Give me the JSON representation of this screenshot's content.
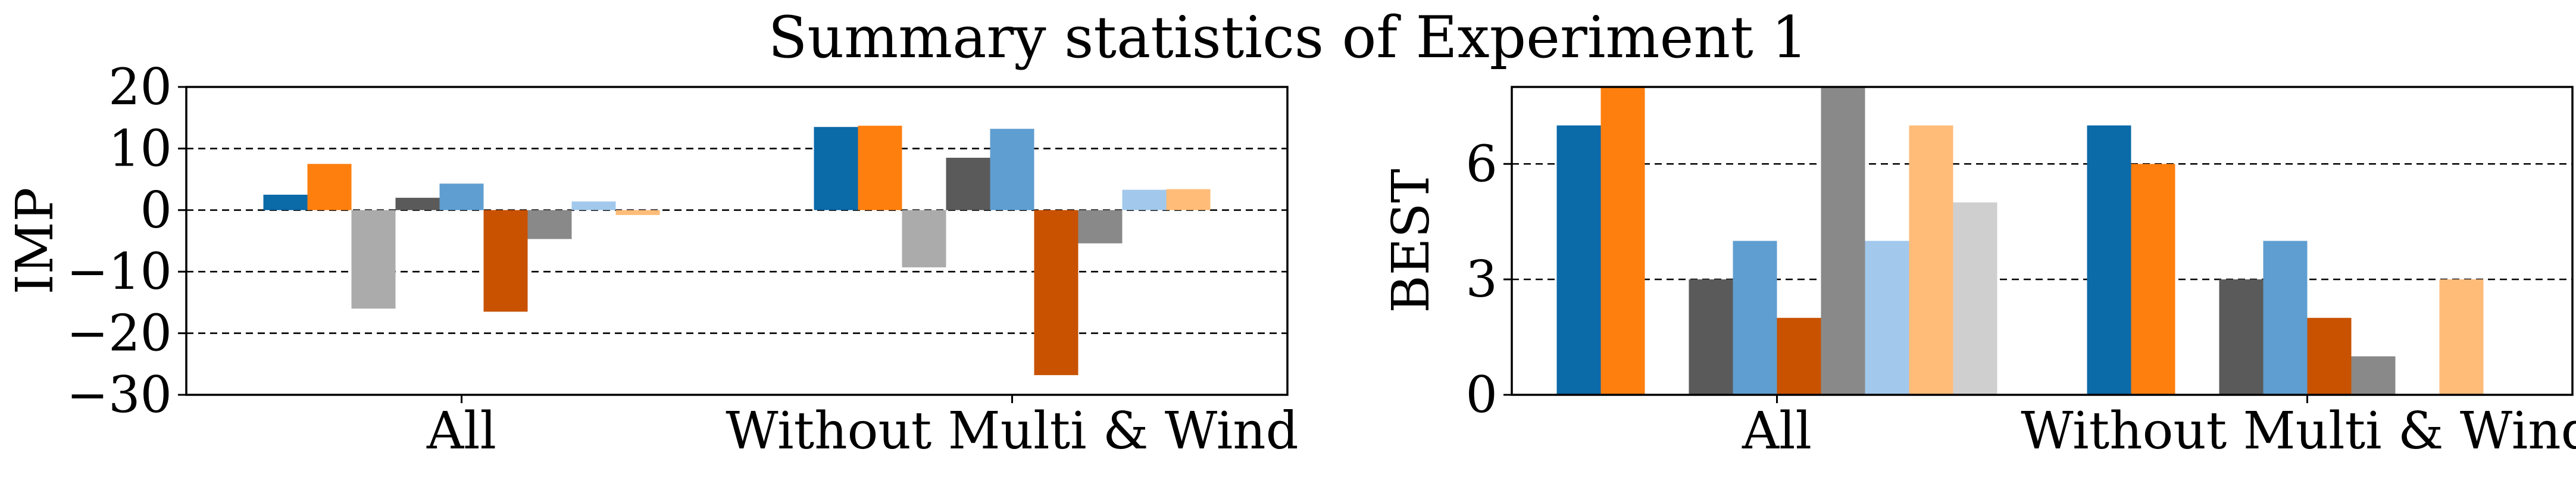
{
  "title": "Summary statistics of Experiment 1",
  "chart_data": [
    {
      "type": "bar",
      "ylabel": "IMP",
      "xlabel": "",
      "ylim": [
        -30,
        20
      ],
      "yticks": [
        -30,
        -20,
        -10,
        0,
        10,
        20
      ],
      "ytick_labels": [
        "−30",
        "−20",
        "−10",
        "0",
        "10",
        "20"
      ],
      "grid_y": [
        -20,
        -10,
        0,
        10
      ],
      "grid_style": "dashed horizontal",
      "categories": [
        "All",
        "Without Multi & Wind"
      ],
      "series": [
        {
          "color": "#0b6aa8",
          "values": [
            2.5,
            13.5
          ]
        },
        {
          "color": "#ff7f0e",
          "values": [
            7.5,
            13.7
          ]
        },
        {
          "color": "#ababab",
          "values": [
            -16.0,
            -9.3
          ]
        },
        {
          "color": "#5a5a5a",
          "values": [
            2.0,
            8.5
          ]
        },
        {
          "color": "#5f9ed1",
          "values": [
            4.3,
            13.2
          ]
        },
        {
          "color": "#c85200",
          "values": [
            -16.5,
            -26.8
          ]
        },
        {
          "color": "#898989",
          "values": [
            -4.7,
            -5.4
          ]
        },
        {
          "color": "#a2c8ec",
          "values": [
            1.4,
            3.3
          ]
        },
        {
          "color": "#ffbc79",
          "values": [
            -0.8,
            3.4
          ]
        }
      ]
    },
    {
      "type": "bar",
      "ylabel": "BEST",
      "xlabel": "",
      "ylim": [
        0,
        8
      ],
      "yticks": [
        0,
        3,
        6
      ],
      "ytick_labels": [
        "0",
        "3",
        "6"
      ],
      "grid_y": [
        3,
        6
      ],
      "grid_style": "dashed horizontal",
      "categories": [
        "All",
        "Without Multi & Wind"
      ],
      "series": [
        {
          "color": "#0b6aa8",
          "values": [
            7,
            7
          ]
        },
        {
          "color": "#ff7f0e",
          "values": [
            8,
            6
          ]
        },
        {
          "color": "#ababab",
          "values": [
            0,
            0
          ]
        },
        {
          "color": "#5a5a5a",
          "values": [
            3,
            3
          ]
        },
        {
          "color": "#5f9ed1",
          "values": [
            4,
            4
          ]
        },
        {
          "color": "#c85200",
          "values": [
            2,
            2
          ]
        },
        {
          "color": "#898989",
          "values": [
            8,
            1
          ]
        },
        {
          "color": "#a2c8ec",
          "values": [
            4,
            0
          ]
        },
        {
          "color": "#ffbc79",
          "values": [
            7,
            3
          ]
        },
        {
          "color": "#cfcfcf",
          "values": [
            5,
            0
          ]
        }
      ]
    }
  ]
}
